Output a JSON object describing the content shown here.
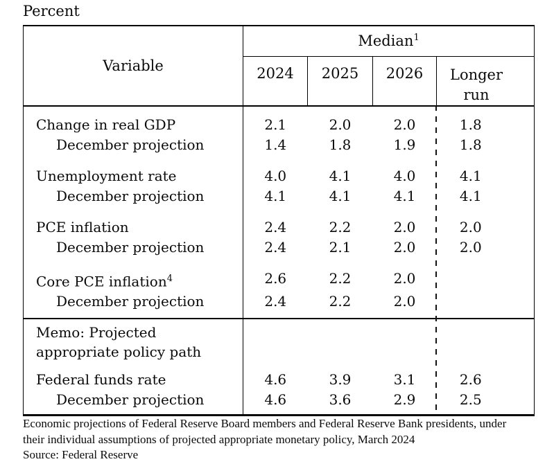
{
  "title": "Percent",
  "table": {
    "corner_header": "Variable",
    "span_header": {
      "label": "Median",
      "superscript": "1"
    },
    "columns": [
      {
        "label": "2024"
      },
      {
        "label": "2025"
      },
      {
        "label": "2026"
      }
    ],
    "longer_run_header": {
      "line1": "Longer",
      "line2": "run"
    },
    "body_rows": [
      {
        "label": "Change in real GDP",
        "superscript": "",
        "indent": false,
        "group_start": true,
        "values": [
          "2.1",
          "2.0",
          "2.0",
          "1.8"
        ]
      },
      {
        "label": "December projection",
        "superscript": "",
        "indent": true,
        "group_start": false,
        "values": [
          "1.4",
          "1.8",
          "1.9",
          "1.8"
        ]
      },
      {
        "label": "Unemployment rate",
        "superscript": "",
        "indent": false,
        "group_start": true,
        "values": [
          "4.0",
          "4.1",
          "4.0",
          "4.1"
        ]
      },
      {
        "label": "December projection",
        "superscript": "",
        "indent": true,
        "group_start": false,
        "values": [
          "4.1",
          "4.1",
          "4.1",
          "4.1"
        ]
      },
      {
        "label": "PCE inflation",
        "superscript": "",
        "indent": false,
        "group_start": true,
        "values": [
          "2.4",
          "2.2",
          "2.0",
          "2.0"
        ]
      },
      {
        "label": "December projection",
        "superscript": "",
        "indent": true,
        "group_start": false,
        "values": [
          "2.4",
          "2.1",
          "2.0",
          "2.0"
        ]
      },
      {
        "label": "Core PCE inflation",
        "superscript": "4",
        "indent": false,
        "group_start": true,
        "values": [
          "2.6",
          "2.2",
          "2.0",
          ""
        ]
      },
      {
        "label": "December projection",
        "superscript": "",
        "indent": true,
        "group_start": false,
        "values": [
          "2.4",
          "2.2",
          "2.0",
          ""
        ]
      }
    ],
    "memo": {
      "line1": "Memo: Projected",
      "line2": "appropriate policy path"
    },
    "memo_rows": [
      {
        "label": "Federal funds rate",
        "superscript": "",
        "indent": false,
        "group_start": true,
        "values": [
          "4.6",
          "3.9",
          "3.1",
          "2.6"
        ]
      },
      {
        "label": "December projection",
        "superscript": "",
        "indent": true,
        "group_start": false,
        "values": [
          "4.6",
          "3.6",
          "2.9",
          "2.5"
        ]
      }
    ]
  },
  "footnotes": {
    "description_line1": "Economic projections of Federal Reserve Board members and Federal Reserve Bank presidents, under",
    "description_line2": "their individual assumptions of projected appropriate monetary policy, March 2024",
    "source": "Source: Federal Reserve"
  }
}
